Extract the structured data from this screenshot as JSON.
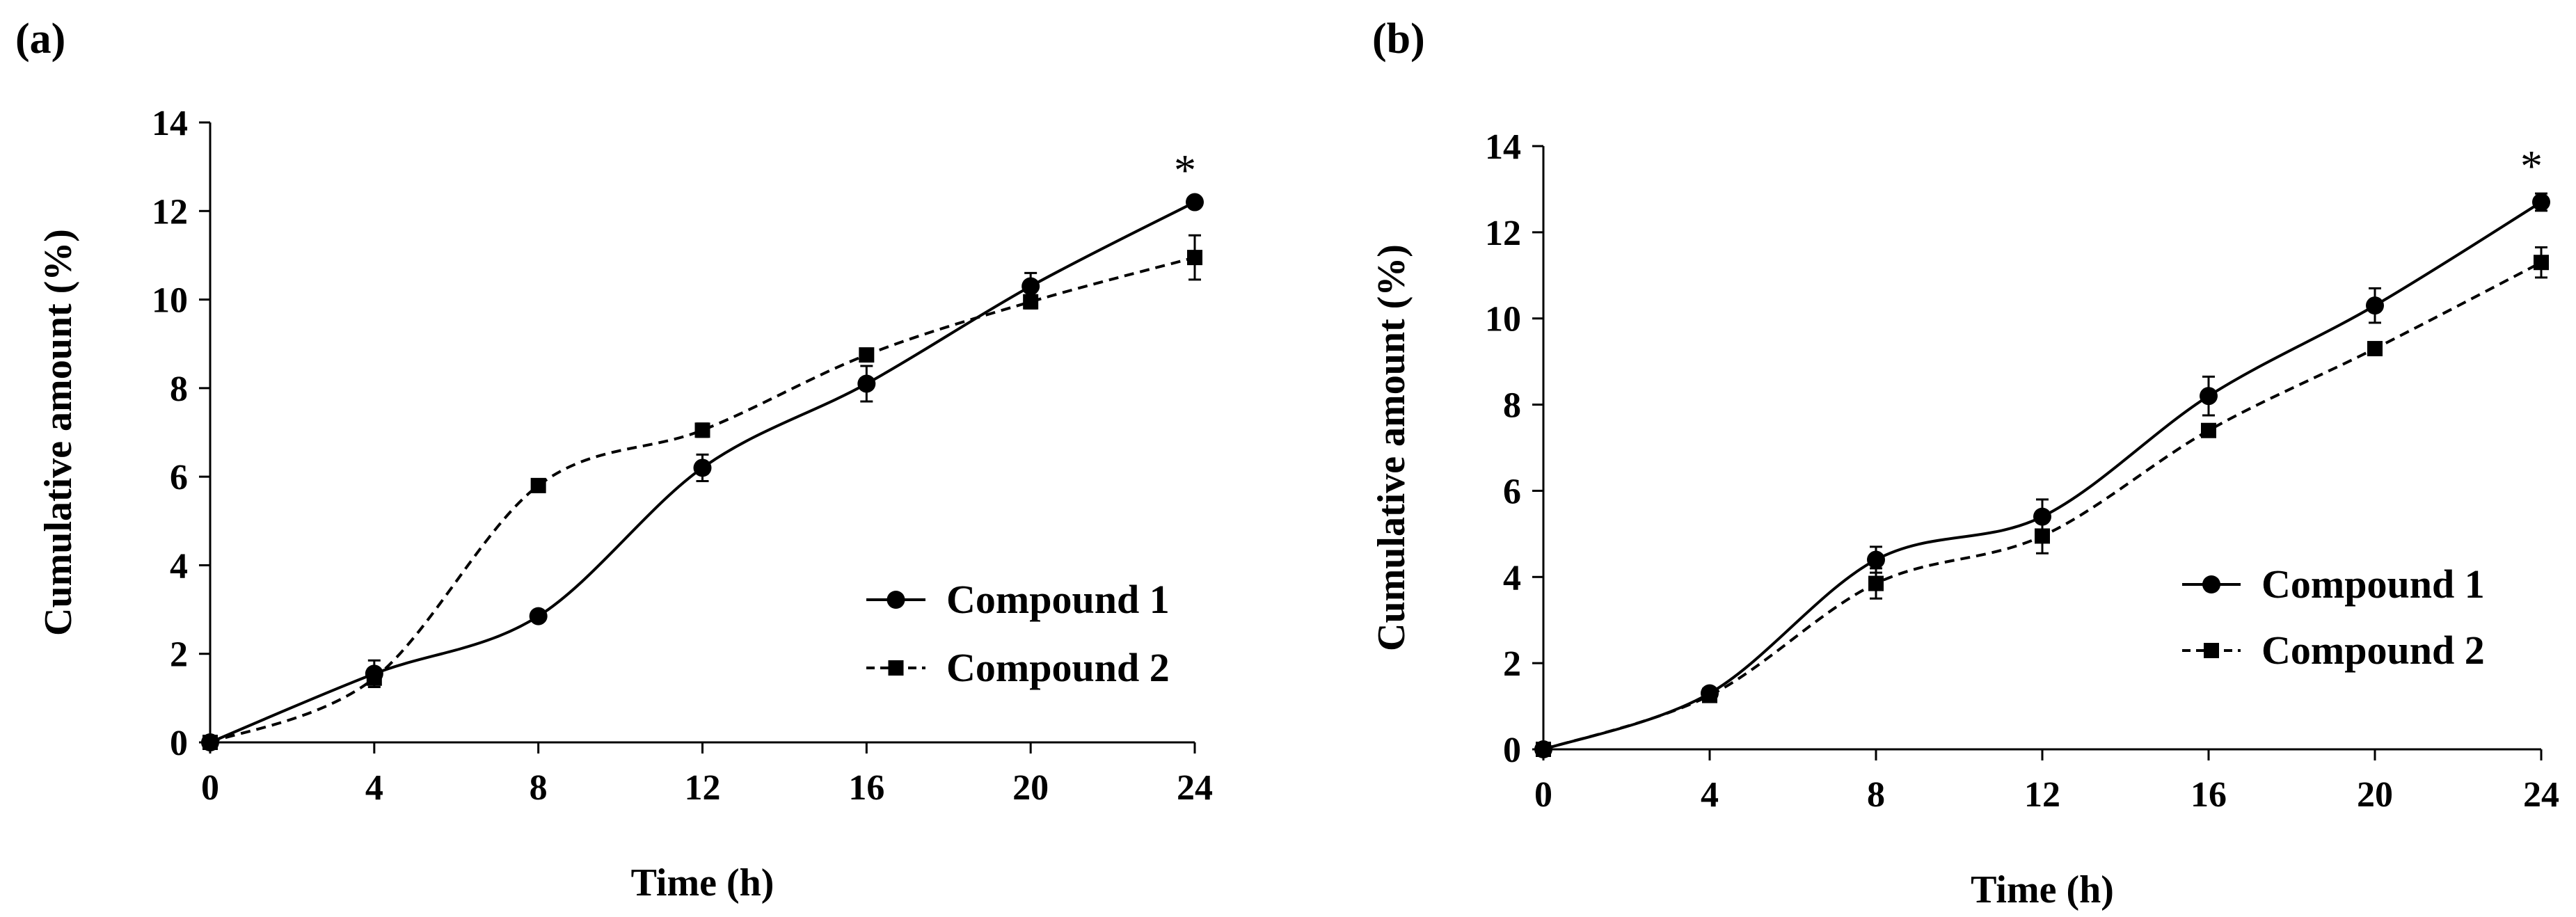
{
  "chart_data": [
    {
      "type": "line",
      "panel_label": "(a)",
      "xlabel": "Time (h)",
      "ylabel": "Cumulative amount (%)",
      "xlim": [
        0,
        24
      ],
      "ylim": [
        0,
        14
      ],
      "x_ticks": [
        "0",
        "4",
        "8",
        "12",
        "16",
        "20",
        "24"
      ],
      "y_ticks": [
        "0",
        "2",
        "4",
        "6",
        "8",
        "10",
        "12",
        "14"
      ],
      "x": [
        0,
        4,
        8,
        12,
        16,
        20,
        24
      ],
      "series": [
        {
          "name": "Compound 1",
          "marker": "circle",
          "line": "solid",
          "values": [
            0,
            1.55,
            2.85,
            6.2,
            8.1,
            10.3,
            12.2
          ],
          "errors": [
            0,
            0.3,
            0.1,
            0.3,
            0.4,
            0.3,
            0.1
          ]
        },
        {
          "name": "Compound 2",
          "marker": "square",
          "line": "dashed",
          "values": [
            0,
            1.45,
            5.8,
            7.05,
            8.75,
            9.95,
            10.95
          ],
          "errors": [
            0,
            0.15,
            0.1,
            0.15,
            0.1,
            0.15,
            0.5
          ]
        }
      ],
      "annotations": [
        {
          "text": "*",
          "x": 24
        }
      ],
      "legend": "bottom-right",
      "grid": false
    },
    {
      "type": "line",
      "panel_label": "(b)",
      "xlabel": "Time (h)",
      "ylabel": "Cumulative amount (%)",
      "xlim": [
        0,
        24
      ],
      "ylim": [
        0,
        14
      ],
      "x_ticks": [
        "0",
        "4",
        "8",
        "12",
        "16",
        "20",
        "24"
      ],
      "y_ticks": [
        "0",
        "2",
        "4",
        "6",
        "8",
        "10",
        "12",
        "14"
      ],
      "x": [
        0,
        4,
        8,
        12,
        16,
        20,
        24
      ],
      "series": [
        {
          "name": "Compound 1",
          "marker": "circle",
          "line": "solid",
          "values": [
            0,
            1.3,
            4.4,
            5.4,
            8.2,
            10.3,
            12.7
          ],
          "errors": [
            0,
            0.1,
            0.3,
            0.4,
            0.45,
            0.4,
            0.2
          ]
        },
        {
          "name": "Compound 2",
          "marker": "square",
          "line": "dashed",
          "values": [
            0,
            1.25,
            3.85,
            4.95,
            7.4,
            9.3,
            11.3
          ],
          "errors": [
            0,
            0.1,
            0.35,
            0.4,
            0.15,
            0.1,
            0.35
          ]
        }
      ],
      "annotations": [
        {
          "text": "*",
          "x": 24
        }
      ],
      "legend": "bottom-right",
      "grid": false
    }
  ]
}
